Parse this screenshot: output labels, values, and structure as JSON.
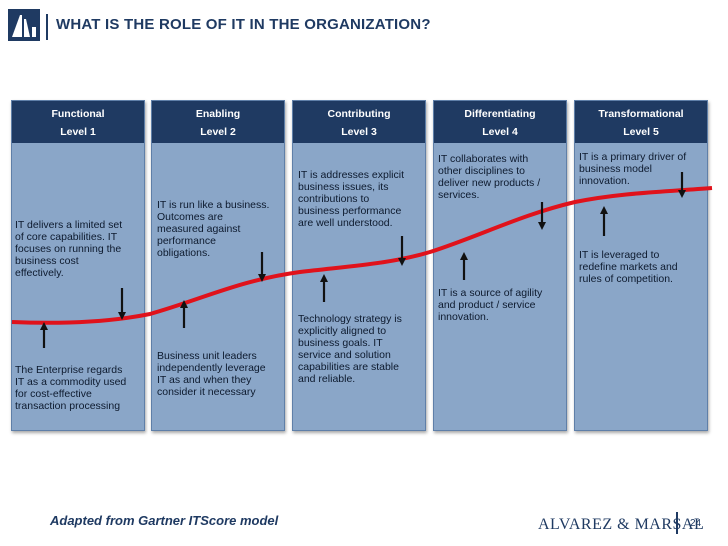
{
  "header": {
    "title": "WHAT IS THE ROLE OF IT IN THE ORGANIZATION?"
  },
  "levels": [
    {
      "name": "Functional",
      "level": "Level 1",
      "upper_text": [
        "IT delivers a limited set",
        "of core capabilities. IT",
        "focuses on running the",
        "business cost",
        "effectively."
      ],
      "lower_text": [
        "The Enterprise regards",
        "IT as a commodity used",
        "for cost-effective",
        "transaction processing"
      ]
    },
    {
      "name": "Enabling",
      "level": "Level 2",
      "upper_text": [
        "IT is run like a business.",
        "Outcomes are",
        "measured against",
        "performance",
        "obligations."
      ],
      "lower_text": [
        "Business unit leaders",
        "independently leverage",
        "IT as and when they",
        "consider it necessary"
      ]
    },
    {
      "name": "Contributing",
      "level": "Level 3",
      "upper_text": [
        "IT is addresses explicit",
        "business issues, its",
        "contributions to",
        "business performance",
        "are well understood."
      ],
      "lower_text": [
        "Technology strategy is",
        "explicitly aligned to",
        "business goals. IT",
        "service and solution",
        "capabilities are stable",
        "and reliable."
      ]
    },
    {
      "name": "Differentiating",
      "level": "Level 4",
      "upper_text": [
        "IT collaborates with",
        "other disciplines to",
        "deliver new products /",
        "services."
      ],
      "lower_text": [
        "IT is a source of agility",
        "and product / service",
        "innovation."
      ]
    },
    {
      "name": "Transformational",
      "level": "Level 5",
      "upper_text": [
        "IT is a primary driver of",
        "business model",
        "innovation."
      ],
      "lower_text": [
        "IT is leveraged to",
        "redefine markets and",
        "rules of competition."
      ]
    }
  ],
  "footer": {
    "note": "Adapted from Gartner ITScore model",
    "brand": "ALVAREZ & MARSAL",
    "page_number": "24"
  },
  "colors": {
    "navy": "#1f3a62",
    "panel": "#8aa6c8",
    "curve": "#e0121b"
  }
}
